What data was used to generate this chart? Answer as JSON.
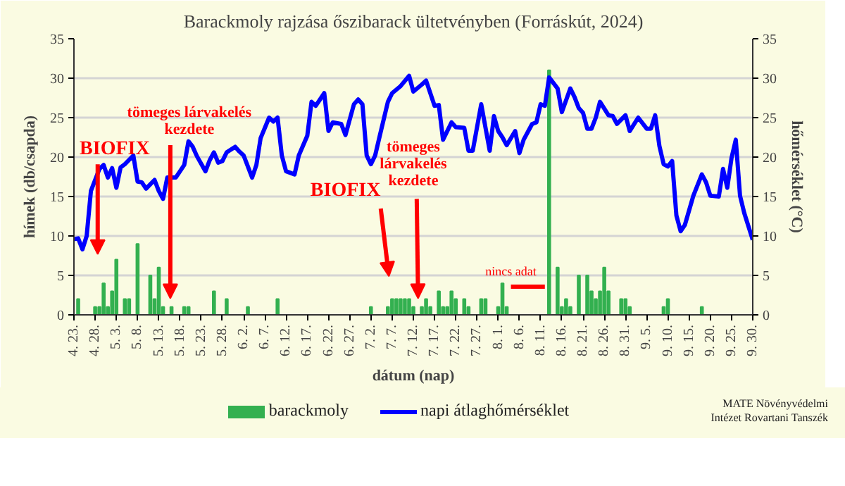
{
  "chart_data": {
    "type": "bar",
    "title": "Barackmoly rajzása őszibarack ültetvényben (Forráskút, 2024)",
    "xlabel": "dátum (nap)",
    "ylabel": "hímek (db/csapda)",
    "y2label": "hőmérséklet (°C)",
    "xlim": [
      "2024-04-23",
      "2024-09-30"
    ],
    "xticks": [
      {
        "value": "2024-04-23",
        "label": "4. 23."
      },
      {
        "value": "2024-04-28",
        "label": "4. 28."
      },
      {
        "value": "2024-05-03",
        "label": "5. 3."
      },
      {
        "value": "2024-05-08",
        "label": "5. 8."
      },
      {
        "value": "2024-05-13",
        "label": "5. 13."
      },
      {
        "value": "2024-05-18",
        "label": "5. 18."
      },
      {
        "value": "2024-05-23",
        "label": "5. 23."
      },
      {
        "value": "2024-05-28",
        "label": "5. 28."
      },
      {
        "value": "2024-06-02",
        "label": "6. 2."
      },
      {
        "value": "2024-06-07",
        "label": "6. 7."
      },
      {
        "value": "2024-06-12",
        "label": "6. 12."
      },
      {
        "value": "2024-06-17",
        "label": "6. 17."
      },
      {
        "value": "2024-06-22",
        "label": "6. 22."
      },
      {
        "value": "2024-06-27",
        "label": "6. 27."
      },
      {
        "value": "2024-07-02",
        "label": "7. 2."
      },
      {
        "value": "2024-07-07",
        "label": "7. 7."
      },
      {
        "value": "2024-07-12",
        "label": "7. 12."
      },
      {
        "value": "2024-07-17",
        "label": "7. 17."
      },
      {
        "value": "2024-07-22",
        "label": "7. 22."
      },
      {
        "value": "2024-07-27",
        "label": "7. 27."
      },
      {
        "value": "2024-08-01",
        "label": "8. 1."
      },
      {
        "value": "2024-08-06",
        "label": "8. 6."
      },
      {
        "value": "2024-08-11",
        "label": "8. 11."
      },
      {
        "value": "2024-08-16",
        "label": "8. 16."
      },
      {
        "value": "2024-08-21",
        "label": "8. 21."
      },
      {
        "value": "2024-08-26",
        "label": "8. 26."
      },
      {
        "value": "2024-08-31",
        "label": "8. 31."
      },
      {
        "value": "2024-09-05",
        "label": "9. 5."
      },
      {
        "value": "2024-09-10",
        "label": "9. 10."
      },
      {
        "value": "2024-09-15",
        "label": "9. 15."
      },
      {
        "value": "2024-09-20",
        "label": "9. 20."
      },
      {
        "value": "2024-09-25",
        "label": "9. 25."
      },
      {
        "value": "2024-09-30",
        "label": "9. 30."
      }
    ],
    "ylim": [
      0,
      35
    ],
    "yticks": [
      0,
      5,
      10,
      15,
      20,
      25,
      30,
      35
    ],
    "y2lim": [
      0,
      35
    ],
    "y2ticks": [
      0,
      5,
      10,
      15,
      20,
      25,
      30,
      35
    ],
    "grid": "y",
    "legend": "bottom",
    "series": [
      {
        "name": "barackmoly",
        "color": "#33b050",
        "x": [
          "2024-04-24",
          "2024-04-28",
          "2024-04-29",
          "2024-04-30",
          "2024-05-01",
          "2024-05-02",
          "2024-05-03",
          "2024-05-05",
          "2024-05-06",
          "2024-05-08",
          "2024-05-11",
          "2024-05-12",
          "2024-05-13",
          "2024-05-14",
          "2024-05-16",
          "2024-05-19",
          "2024-05-20",
          "2024-05-26",
          "2024-05-29",
          "2024-06-03",
          "2024-06-10",
          "2024-07-02",
          "2024-07-06",
          "2024-07-07",
          "2024-07-08",
          "2024-07-09",
          "2024-07-10",
          "2024-07-11",
          "2024-07-12",
          "2024-07-14",
          "2024-07-15",
          "2024-07-16",
          "2024-07-18",
          "2024-07-19",
          "2024-07-20",
          "2024-07-21",
          "2024-07-22",
          "2024-07-24",
          "2024-07-25",
          "2024-07-28",
          "2024-07-29",
          "2024-08-01",
          "2024-08-02",
          "2024-08-03",
          "2024-08-04",
          "2024-08-05",
          "2024-08-06",
          "2024-08-07",
          "2024-08-08",
          "2024-08-09",
          "2024-08-10",
          "2024-08-11",
          "2024-08-12",
          "2024-08-13",
          "2024-08-15",
          "2024-08-16",
          "2024-08-17",
          "2024-08-18",
          "2024-08-20",
          "2024-08-22",
          "2024-08-23",
          "2024-08-24",
          "2024-08-25",
          "2024-08-26",
          "2024-08-27",
          "2024-08-30",
          "2024-08-31",
          "2024-09-01",
          "2024-09-09",
          "2024-09-10",
          "2024-09-18"
        ],
        "values": [
          2,
          1,
          1,
          4,
          1,
          3,
          7,
          2,
          2,
          9,
          5,
          2,
          6,
          1,
          1,
          1,
          1,
          3,
          2,
          1,
          2,
          1,
          1,
          2,
          2,
          2,
          2,
          2,
          1,
          1,
          2,
          1,
          3,
          1,
          1,
          3,
          2,
          2,
          1,
          2,
          2,
          1,
          4,
          1,
          null,
          null,
          null,
          null,
          null,
          null,
          null,
          null,
          null,
          31,
          6,
          1,
          2,
          1,
          5,
          5,
          3,
          2,
          3,
          6,
          3,
          2,
          2,
          1,
          1,
          2,
          1
        ]
      },
      {
        "name": "napi átlaghőmérséklet",
        "type": "line",
        "axis": "y2",
        "color": "#0000ff",
        "x": [
          "2024-04-23",
          "2024-04-24",
          "2024-04-25",
          "2024-04-26",
          "2024-04-27",
          "2024-04-29",
          "2024-04-30",
          "2024-05-01",
          "2024-05-02",
          "2024-05-03",
          "2024-05-04",
          "2024-05-05",
          "2024-05-07",
          "2024-05-08",
          "2024-05-09",
          "2024-05-10",
          "2024-05-12",
          "2024-05-13",
          "2024-05-14",
          "2024-05-15",
          "2024-05-17",
          "2024-05-19",
          "2024-05-20",
          "2024-05-21",
          "2024-05-22",
          "2024-05-24",
          "2024-05-25",
          "2024-05-26",
          "2024-05-27",
          "2024-05-28",
          "2024-05-29",
          "2024-05-31",
          "2024-06-01",
          "2024-06-02",
          "2024-06-04",
          "2024-06-05",
          "2024-06-06",
          "2024-06-08",
          "2024-06-09",
          "2024-06-10",
          "2024-06-11",
          "2024-06-12",
          "2024-06-14",
          "2024-06-15",
          "2024-06-17",
          "2024-06-18",
          "2024-06-19",
          "2024-06-20",
          "2024-06-21",
          "2024-06-22",
          "2024-06-23",
          "2024-06-25",
          "2024-06-26",
          "2024-06-28",
          "2024-06-29",
          "2024-06-30",
          "2024-07-01",
          "2024-07-02",
          "2024-07-03",
          "2024-07-04",
          "2024-07-06",
          "2024-07-07",
          "2024-07-09",
          "2024-07-11",
          "2024-07-12",
          "2024-07-14",
          "2024-07-15",
          "2024-07-17",
          "2024-07-18",
          "2024-07-19",
          "2024-07-21",
          "2024-07-22",
          "2024-07-24",
          "2024-07-25",
          "2024-07-26",
          "2024-07-28",
          "2024-07-30",
          "2024-07-31",
          "2024-08-01",
          "2024-08-02",
          "2024-08-03",
          "2024-08-05",
          "2024-08-06",
          "2024-08-07",
          "2024-08-09",
          "2024-08-10",
          "2024-08-11",
          "2024-08-12",
          "2024-08-13",
          "2024-08-15",
          "2024-08-16",
          "2024-08-18",
          "2024-08-19",
          "2024-08-20",
          "2024-08-21",
          "2024-08-22",
          "2024-08-23",
          "2024-08-24",
          "2024-08-25",
          "2024-08-27",
          "2024-08-28",
          "2024-08-29",
          "2024-08-31",
          "2024-09-01",
          "2024-09-03",
          "2024-09-05",
          "2024-09-06",
          "2024-09-07",
          "2024-09-08",
          "2024-09-09",
          "2024-09-10",
          "2024-09-11",
          "2024-09-12",
          "2024-09-13",
          "2024-09-14",
          "2024-09-16",
          "2024-09-18",
          "2024-09-19",
          "2024-09-20",
          "2024-09-22",
          "2024-09-23",
          "2024-09-24",
          "2024-09-25",
          "2024-09-26",
          "2024-09-27",
          "2024-09-28",
          "2024-09-30"
        ],
        "values": [
          9.6,
          9.7,
          8.3,
          10,
          15.7,
          18.5,
          19,
          17.4,
          18.6,
          16.1,
          18.7,
          19.1,
          20.2,
          16.9,
          16.8,
          16,
          17.1,
          15.7,
          14.7,
          17.4,
          17.4,
          19,
          22,
          21.3,
          20.1,
          18.2,
          19.6,
          20.6,
          19.3,
          19.5,
          20.6,
          21.3,
          20.7,
          20.2,
          17.4,
          19,
          22.4,
          25,
          24.5,
          25,
          20.2,
          18.2,
          17.8,
          20.2,
          22.7,
          27,
          26.5,
          27.3,
          28.1,
          23.3,
          24.4,
          24.2,
          22.8,
          26.7,
          27.3,
          26.7,
          20.2,
          19.1,
          20.2,
          22.5,
          27,
          28.1,
          29,
          30.3,
          28.3,
          29.2,
          29.7,
          26.5,
          26.6,
          22.2,
          24.4,
          23.8,
          23.7,
          20.8,
          20.8,
          26.7,
          20.8,
          25.2,
          23.3,
          22.5,
          21.5,
          23.3,
          20.5,
          22.2,
          24.2,
          24.4,
          26.7,
          26.5,
          30.1,
          28.7,
          25.7,
          28.7,
          27.6,
          26.2,
          25.6,
          23.6,
          23.6,
          25,
          27,
          25.3,
          25.2,
          24.2,
          25.3,
          23.3,
          25,
          23.6,
          23.6,
          25.3,
          21.4,
          19.1,
          18.8,
          19.5,
          12.6,
          10.6,
          11.4,
          15.1,
          17.8,
          16.8,
          15.1,
          15,
          18.5,
          16.1,
          19.9,
          22.2,
          15.1,
          12.9,
          9.5
        ]
      }
    ],
    "annotations": [
      "BIOFIX",
      "tömeges lárvakelés\nkezdete",
      "BIOFIX",
      "tömeges\nlárvakelés\nkezdete",
      "nincs adat",
      "MATE Növényvédelmi\nIntézet Rovartani Tanszék"
    ]
  }
}
